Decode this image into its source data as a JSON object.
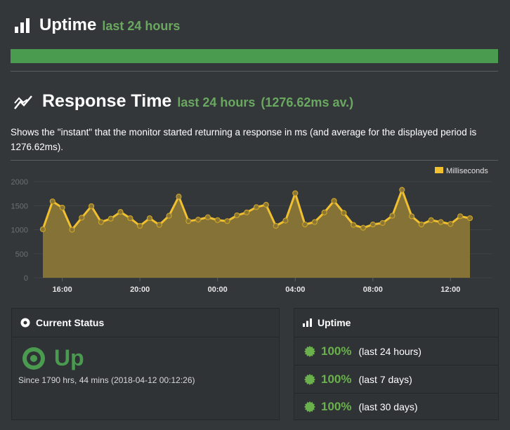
{
  "uptime_section": {
    "title": "Uptime",
    "subtitle": "last 24 hours",
    "bar_fraction": 1.0,
    "bar_color": "#4a9a50",
    "icon": "bar-chart-icon"
  },
  "response_section": {
    "title": "Response Time",
    "subtitle": "last 24 hours",
    "average": "(1276.62ms av.)",
    "description": "Shows the \"instant\" that the monitor started returning a response in ms (and average for the displayed period is 1276.62ms).",
    "icon": "line-chart-icon"
  },
  "chart_data": {
    "type": "area",
    "title": "",
    "xlabel": "",
    "ylabel": "",
    "series": [
      {
        "name": "Milliseconds",
        "color": "#f0c030",
        "fill": "#8a7536",
        "values": [
          1010,
          1590,
          1460,
          1000,
          1250,
          1490,
          1160,
          1230,
          1370,
          1240,
          1080,
          1240,
          1100,
          1290,
          1690,
          1180,
          1210,
          1260,
          1200,
          1180,
          1300,
          1360,
          1470,
          1520,
          1080,
          1190,
          1760,
          1110,
          1160,
          1360,
          1600,
          1350,
          1100,
          1040,
          1110,
          1140,
          1290,
          1830,
          1280,
          1110,
          1200,
          1160,
          1120,
          1280,
          1240
        ]
      }
    ],
    "x_tick_labels": [
      "16:00",
      "20:00",
      "00:00",
      "04:00",
      "08:00",
      "12:00"
    ],
    "x_ticks_at_index": [
      2,
      10,
      18,
      26,
      34,
      42
    ],
    "ylim": [
      0,
      2000
    ],
    "y_ticks": [
      0,
      500,
      1000,
      1500,
      2000
    ],
    "legend_position": "top-right",
    "grid": true
  },
  "status_panel": {
    "header": "Current Status",
    "header_icon": "dot-circle-icon",
    "state": "Up",
    "state_color": "#4a9a50",
    "since": "Since 1790 hrs, 44 mins (2018-04-12 00:12:26)"
  },
  "uptime_panel": {
    "header": "Uptime",
    "header_icon": "bar-chart-icon",
    "rows": [
      {
        "pct": "100%",
        "period": "(last 24 hours)"
      },
      {
        "pct": "100%",
        "period": "(last 7 days)"
      },
      {
        "pct": "100%",
        "period": "(last 30 days)"
      }
    ],
    "row_icon": "certificate-icon"
  }
}
